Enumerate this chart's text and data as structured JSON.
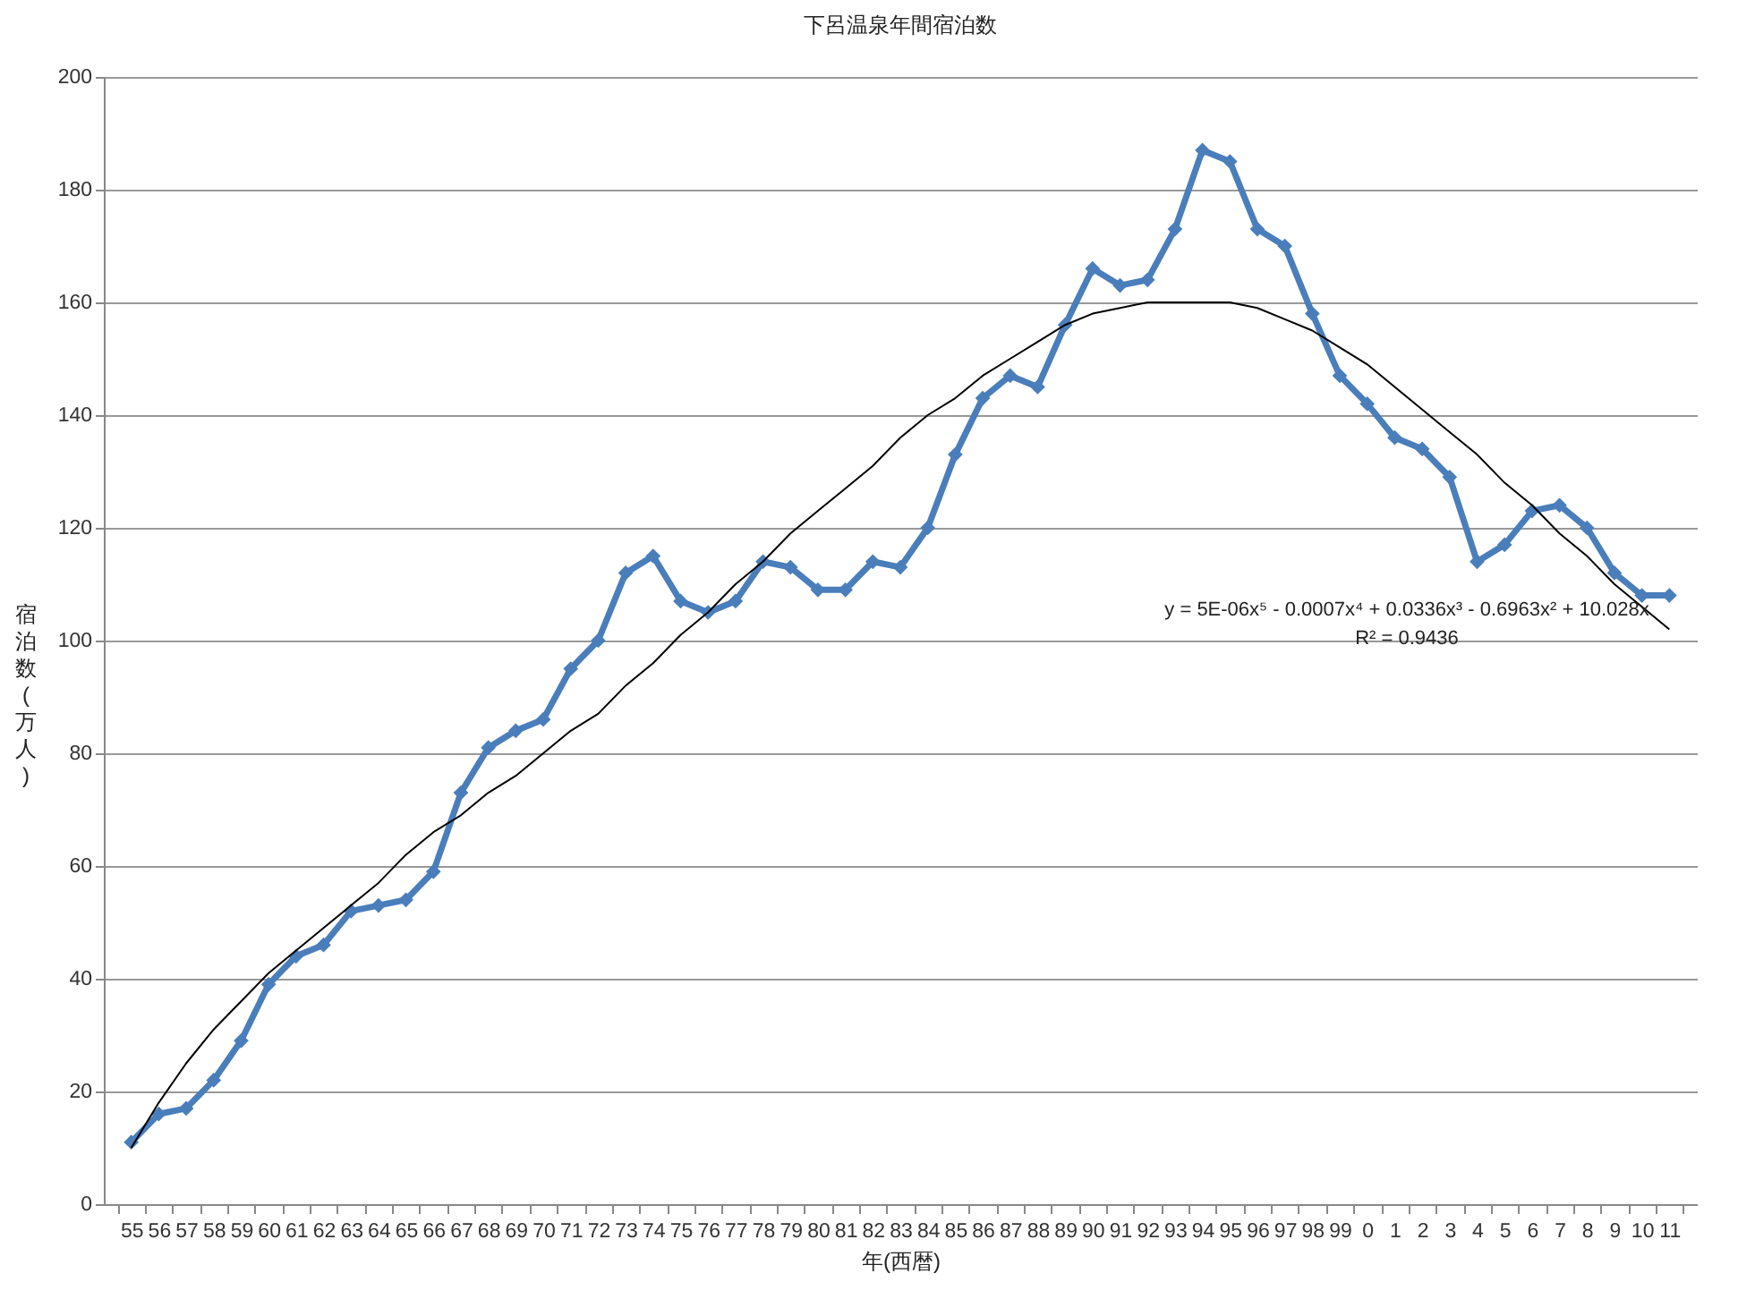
{
  "chart_data": {
    "type": "line",
    "title": "下呂温泉年間宿泊数",
    "xlabel": "年(西暦)",
    "ylabel": "宿泊数(万人)",
    "categories": [
      "55",
      "56",
      "57",
      "58",
      "59",
      "60",
      "61",
      "62",
      "63",
      "64",
      "65",
      "66",
      "67",
      "68",
      "69",
      "70",
      "71",
      "72",
      "73",
      "74",
      "75",
      "76",
      "77",
      "78",
      "79",
      "80",
      "81",
      "82",
      "83",
      "84",
      "85",
      "86",
      "87",
      "88",
      "89",
      "90",
      "91",
      "92",
      "93",
      "94",
      "95",
      "96",
      "97",
      "98",
      "99",
      "0",
      "1",
      "2",
      "3",
      "4",
      "5",
      "6",
      "7",
      "8",
      "9",
      "10",
      "11"
    ],
    "series": [
      {
        "color": "#4a7ebb",
        "marker": "diamond",
        "values": [
          11,
          16,
          17,
          22,
          29,
          39,
          44,
          46,
          52,
          53,
          54,
          59,
          73,
          81,
          84,
          86,
          95,
          100,
          112,
          115,
          107,
          105,
          107,
          114,
          113,
          109,
          109,
          114,
          113,
          120,
          133,
          143,
          147,
          145,
          156,
          166,
          163,
          164,
          173,
          187,
          185,
          173,
          170,
          158,
          147,
          142,
          136,
          134,
          129,
          114,
          117,
          123,
          124,
          120,
          112,
          108,
          108
        ]
      },
      {
        "type": "line",
        "color": "#000000",
        "marker": "none",
        "values": [
          10,
          18,
          25,
          31,
          36,
          41,
          45,
          49,
          53,
          57,
          62,
          66,
          69,
          73,
          76,
          80,
          84,
          87,
          92,
          96,
          101,
          105,
          110,
          114,
          119,
          123,
          127,
          131,
          136,
          140,
          143,
          147,
          150,
          153,
          156,
          158,
          159,
          160,
          160,
          160,
          160,
          159,
          157,
          155,
          152,
          149,
          145,
          141,
          137,
          133,
          128,
          124,
          119,
          115,
          110,
          106,
          102
        ]
      }
    ],
    "ylim": [
      0,
      200
    ],
    "yticks": [
      0,
      20,
      40,
      60,
      80,
      100,
      120,
      140,
      160,
      180,
      200
    ],
    "grid": "y",
    "annotations": [
      "y = 5E-06x⁵ - 0.0007x⁴ + 0.0336x³ - 0.6963x² + 10.028x",
      "R² = 0.9436"
    ]
  }
}
